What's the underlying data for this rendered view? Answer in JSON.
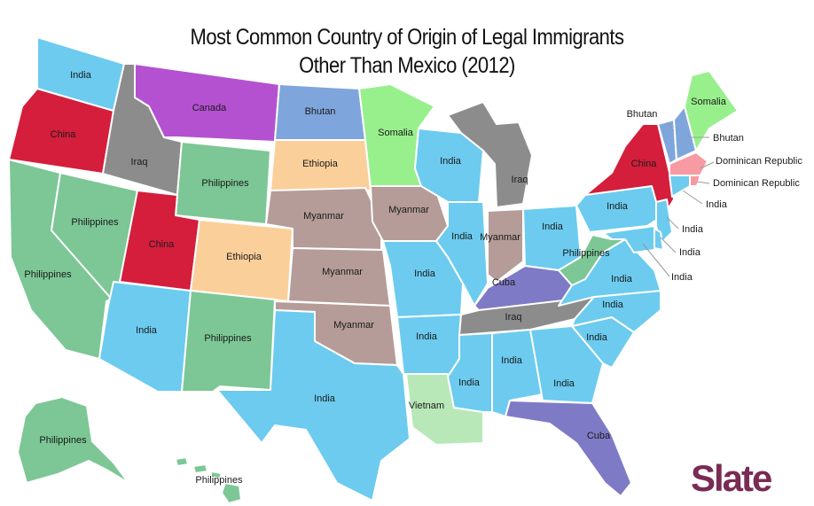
{
  "title_line1": "Most Common Country of Origin of Legal Immigrants",
  "title_line2": "Other Than Mexico (2012)",
  "logo": "Slate",
  "colors": {
    "India": "#6ccbef",
    "China": "#d41e3c",
    "Philippines": "#7cc795",
    "Canada": "#b451d1",
    "Bhutan": "#7fa6dc",
    "Somalia": "#98f08c",
    "Iraq": "#8c8c8c",
    "Ethiopia": "#fbcf9a",
    "Myanmar": "#b59c98",
    "Cuba": "#7f7ac6",
    "Vietnam": "#b8e8b8",
    "Dominican Republic": "#f79aa2"
  },
  "states": {
    "WA": "India",
    "OR": "China",
    "CA": "Philippines",
    "NV": "Philippines",
    "ID": "Iraq",
    "MT": "Canada",
    "WY": "Philippines",
    "UT": "China",
    "CO": "Ethiopia",
    "AZ": "India",
    "NM": "Philippines",
    "ND": "Bhutan",
    "SD": "Ethiopia",
    "NE": "Myanmar",
    "KS": "Myanmar",
    "OK": "Myanmar",
    "TX": "India",
    "MN": "Somalia",
    "IA": "Myanmar",
    "MO": "India",
    "AR": "India",
    "LA": "Vietnam",
    "WI": "India",
    "IL": "India",
    "MI": "Iraq",
    "IN": "Myanmar",
    "OH": "India",
    "KY": "Cuba",
    "TN": "Iraq",
    "MS": "India",
    "AL": "India",
    "GA": "India",
    "FL": "Cuba",
    "SC": "India",
    "NC": "India",
    "VA": "India",
    "WV": "Philippines",
    "PA": "India",
    "NY": "China",
    "VT": "Bhutan",
    "NH": "Bhutan",
    "ME": "Somalia",
    "MA": "Dominican Republic",
    "RI": "Dominican Republic",
    "CT": "India",
    "NJ": "India",
    "DE": "India",
    "MD": "India",
    "AK": "Philippines",
    "HI": "Philippines"
  }
}
